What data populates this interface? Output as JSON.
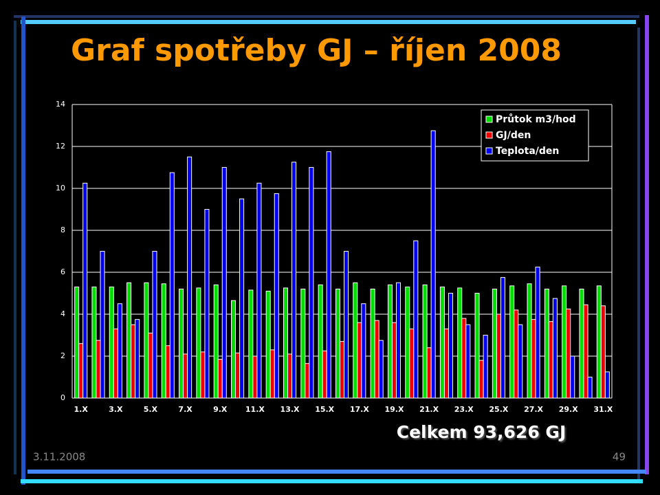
{
  "chart_data": {
    "type": "bar",
    "title": "Graf spotřeby GJ – říjen 2008",
    "categories": [
      "1.X",
      null,
      "3.X",
      null,
      "5.X",
      null,
      "7.X",
      null,
      "9.X",
      null,
      "11.X",
      null,
      "13.X",
      null,
      "15.X",
      null,
      "17.X",
      null,
      "19.X",
      null,
      "21.X",
      null,
      "23.X",
      null,
      "25.X",
      null,
      "27.X",
      null,
      "29.X",
      null,
      "31.X"
    ],
    "series": [
      {
        "name": "Průtok m3/hod",
        "color": "#00dd00",
        "values": [
          5.3,
          5.3,
          5.3,
          5.5,
          5.5,
          5.45,
          5.2,
          5.25,
          5.4,
          4.65,
          5.15,
          5.1,
          5.25,
          5.2,
          5.4,
          5.2,
          5.5,
          5.2,
          5.4,
          5.3,
          5.4,
          5.3,
          5.25,
          5.0,
          5.2,
          5.35,
          5.45,
          5.2,
          5.35,
          5.2,
          5.35
        ]
      },
      {
        "name": "GJ/den",
        "color": "#ee0000",
        "values": [
          2.6,
          2.75,
          3.3,
          3.5,
          3.1,
          2.5,
          2.1,
          2.2,
          1.85,
          2.15,
          2.0,
          2.3,
          2.1,
          1.65,
          2.25,
          2.7,
          3.6,
          3.7,
          3.6,
          3.3,
          2.4,
          3.3,
          3.8,
          1.8,
          4.0,
          4.2,
          3.75,
          3.65,
          4.25,
          4.45,
          4.4
        ]
      },
      {
        "name": "Teplota/den",
        "color": "#0000ee",
        "values": [
          10.25,
          7.0,
          4.5,
          3.75,
          7.0,
          10.75,
          11.5,
          9.0,
          11.0,
          9.5,
          10.25,
          9.75,
          11.25,
          11.0,
          11.75,
          7.0,
          4.5,
          2.75,
          5.5,
          7.5,
          12.75,
          5.0,
          3.5,
          3.0,
          5.75,
          3.5,
          6.25,
          4.75,
          2.0,
          1.0,
          1.25
        ]
      }
    ],
    "ylim": [
      0,
      14
    ],
    "yticks": [
      0,
      2,
      4,
      6,
      8,
      10,
      12,
      14
    ],
    "grid": true,
    "legend": "upper right"
  },
  "total": "Celkem 93,626 GJ",
  "footer": {
    "date": "3.11.2008",
    "page": "49"
  }
}
